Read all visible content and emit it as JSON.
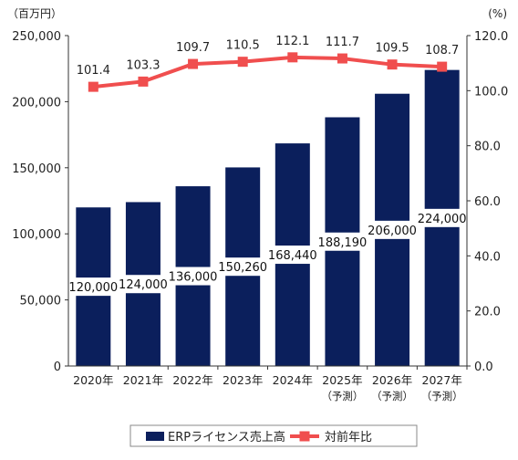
{
  "chart_data": {
    "type": "bar",
    "categories": [
      "2020年",
      "2021年",
      "2022年",
      "2023年",
      "2024年",
      "2025年",
      "2026年",
      "2027年"
    ],
    "category_notes": [
      "",
      "",
      "",
      "",
      "",
      "（予測）",
      "（予測）",
      "（予測）"
    ],
    "series": [
      {
        "name": "ERPライセンス売上高",
        "type": "bar",
        "axis": "left",
        "color": "#0b1f5c",
        "values": [
          120000,
          124000,
          136000,
          150260,
          168440,
          188190,
          206000,
          224000
        ],
        "labels": [
          "120,000",
          "124,000",
          "136,000",
          "150,260",
          "168,440",
          "188,190",
          "206,000",
          "224,000"
        ]
      },
      {
        "name": "対前年比",
        "type": "line",
        "axis": "right",
        "color": "#f04e4e",
        "values": [
          101.4,
          103.3,
          109.7,
          110.5,
          112.1,
          111.7,
          109.5,
          108.7
        ],
        "labels": [
          "101.4",
          "103.3",
          "109.7",
          "110.5",
          "112.1",
          "111.7",
          "109.5",
          "108.7"
        ]
      }
    ],
    "y_left": {
      "unit": "（百万円）",
      "ylim": [
        0,
        250000
      ],
      "ticks": [
        0,
        50000,
        100000,
        150000,
        200000,
        250000
      ],
      "tick_labels": [
        "0",
        "50,000",
        "100,000",
        "150,000",
        "200,000",
        "250,000"
      ]
    },
    "y_right": {
      "unit": "(%)",
      "ylim": [
        0,
        120
      ],
      "ticks": [
        0,
        20,
        40,
        60,
        80,
        100,
        120
      ],
      "tick_labels": [
        "0.0",
        "20.0",
        "40.0",
        "60.0",
        "80.0",
        "100.0",
        "120.0"
      ]
    },
    "grid": false,
    "legend_position": "bottom-center"
  }
}
